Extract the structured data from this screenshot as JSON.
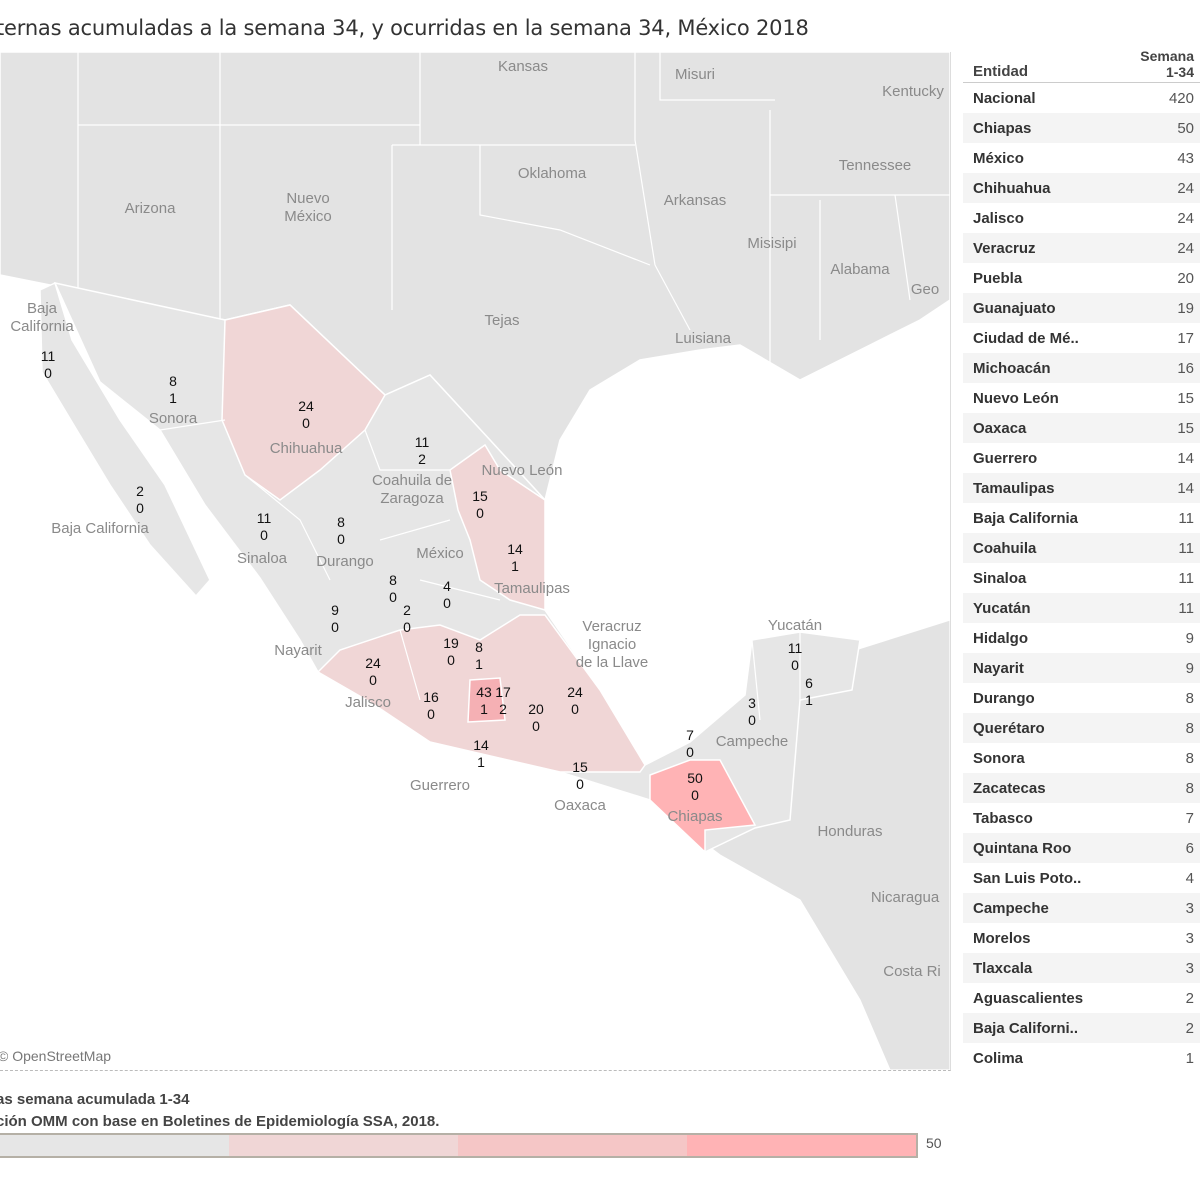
{
  "title": "ternas acumuladas a la semana 34, y ocurridas en la semana 34, México 2018",
  "map": {
    "attribution": "© OpenStreetMap",
    "places": [
      {
        "name": "Kansas"
      },
      {
        "name": "Misuri"
      },
      {
        "name": "Kentucky"
      },
      {
        "name": "Oklahoma"
      },
      {
        "name": "Tennessee"
      },
      {
        "name": "Arizona"
      },
      {
        "name": "Nuevo\nMéxico"
      },
      {
        "name": "Arkansas"
      },
      {
        "name": "Misisipi"
      },
      {
        "name": "Alabama"
      },
      {
        "name": "Geo"
      },
      {
        "name": "Tejas"
      },
      {
        "name": "Luisiana"
      },
      {
        "name": "Honduras"
      },
      {
        "name": "Nicaragua"
      },
      {
        "name": "Costa Ri"
      },
      {
        "name": "Baja\nCalifornia"
      },
      {
        "name": "Sonora"
      },
      {
        "name": "Chihuahua"
      },
      {
        "name": "Coahuila de\nZaragoza"
      },
      {
        "name": "Baja California"
      },
      {
        "name": "Sinaloa"
      },
      {
        "name": "Durango"
      },
      {
        "name": "Nuevo León"
      },
      {
        "name": "Tamaulipas"
      },
      {
        "name": "México"
      },
      {
        "name": "Nayarit"
      },
      {
        "name": "Jalisco"
      },
      {
        "name": "Veracruz\nIgnacio\nde la Llave"
      },
      {
        "name": "Guerrero"
      },
      {
        "name": "Oaxaca"
      },
      {
        "name": "Chiapas"
      },
      {
        "name": "Campeche"
      },
      {
        "name": "Yucatán"
      }
    ],
    "state_labels": [
      {
        "state": "Baja California",
        "cum": "11",
        "week": "0"
      },
      {
        "state": "Sonora",
        "cum": "8",
        "week": "1"
      },
      {
        "state": "Chihuahua",
        "cum": "24",
        "week": "0"
      },
      {
        "state": "Coahuila",
        "cum": "11",
        "week": "2"
      },
      {
        "state": "Baja California Sur",
        "cum": "2",
        "week": "0"
      },
      {
        "state": "Sinaloa",
        "cum": "11",
        "week": "0"
      },
      {
        "state": "Durango",
        "cum": "8",
        "week": "0"
      },
      {
        "state": "Nuevo León",
        "cum": "15",
        "week": "0"
      },
      {
        "state": "Tamaulipas",
        "cum": "14",
        "week": "1"
      },
      {
        "state": "Zacatecas",
        "cum": "8",
        "week": "0"
      },
      {
        "state": "San Luis Potosí",
        "cum": "4",
        "week": "0"
      },
      {
        "state": "Nayarit",
        "cum": "9",
        "week": "0"
      },
      {
        "state": "Aguascalientes",
        "cum": "2",
        "week": "0"
      },
      {
        "state": "Guanajuato",
        "cum": "19",
        "week": "0"
      },
      {
        "state": "Querétaro",
        "cum": "8",
        "week": "1"
      },
      {
        "state": "Jalisco",
        "cum": "24",
        "week": "0"
      },
      {
        "state": "Michoacán",
        "cum": "16",
        "week": "0"
      },
      {
        "state": "México",
        "cum": "43",
        "week": "1"
      },
      {
        "state": "Ciudad de México",
        "cum": "17",
        "week": "2"
      },
      {
        "state": "Puebla",
        "cum": "20",
        "week": "0"
      },
      {
        "state": "Veracruz",
        "cum": "24",
        "week": "0"
      },
      {
        "state": "Guerrero",
        "cum": "14",
        "week": "1"
      },
      {
        "state": "Oaxaca",
        "cum": "15",
        "week": "0"
      },
      {
        "state": "Tabasco",
        "cum": "7",
        "week": "0"
      },
      {
        "state": "Chiapas",
        "cum": "50",
        "week": "0"
      },
      {
        "state": "Campeche",
        "cum": "3",
        "week": "0"
      },
      {
        "state": "Yucatán",
        "cum": "11",
        "week": "0"
      },
      {
        "state": "Quintana Roo",
        "cum": "6",
        "week": "1"
      }
    ]
  },
  "table": {
    "col_entidad": "Entidad",
    "col_semana": "Semana\n1-34",
    "rows": [
      {
        "name": "Nacional",
        "value": "420"
      },
      {
        "name": "Chiapas",
        "value": "50"
      },
      {
        "name": "México",
        "value": "43"
      },
      {
        "name": "Chihuahua",
        "value": "24"
      },
      {
        "name": "Jalisco",
        "value": "24"
      },
      {
        "name": "Veracruz",
        "value": "24"
      },
      {
        "name": "Puebla",
        "value": "20"
      },
      {
        "name": "Guanajuato",
        "value": "19"
      },
      {
        "name": "Ciudad de Mé..",
        "value": "17"
      },
      {
        "name": "Michoacán",
        "value": "16"
      },
      {
        "name": "Nuevo León",
        "value": "15"
      },
      {
        "name": "Oaxaca",
        "value": "15"
      },
      {
        "name": "Guerrero",
        "value": "14"
      },
      {
        "name": "Tamaulipas",
        "value": "14"
      },
      {
        "name": "Baja California",
        "value": "11"
      },
      {
        "name": "Coahuila",
        "value": "11"
      },
      {
        "name": "Sinaloa",
        "value": "11"
      },
      {
        "name": "Yucatán",
        "value": "11"
      },
      {
        "name": "Hidalgo",
        "value": "9"
      },
      {
        "name": "Nayarit",
        "value": "9"
      },
      {
        "name": "Durango",
        "value": "8"
      },
      {
        "name": "Querétaro",
        "value": "8"
      },
      {
        "name": "Sonora",
        "value": "8"
      },
      {
        "name": "Zacatecas",
        "value": "8"
      },
      {
        "name": "Tabasco",
        "value": "7"
      },
      {
        "name": "Quintana Roo",
        "value": "6"
      },
      {
        "name": "San Luis Poto..",
        "value": "4"
      },
      {
        "name": "Campeche",
        "value": "3"
      },
      {
        "name": "Morelos",
        "value": "3"
      },
      {
        "name": "Tlaxcala",
        "value": "3"
      },
      {
        "name": "Aguascalientes",
        "value": "2"
      },
      {
        "name": "Baja Californi..",
        "value": "2"
      },
      {
        "name": "Colima",
        "value": "1"
      }
    ]
  },
  "legend": {
    "line1": "as semana acumulada 1-34",
    "line2": "ción OMM con base en Boletines de Epidemiología SSA, 2018.",
    "max_label": "50",
    "colors": [
      "#e6e6e6",
      "#f0d6d6",
      "#f5c6c6",
      "#ffb3b5"
    ]
  }
}
